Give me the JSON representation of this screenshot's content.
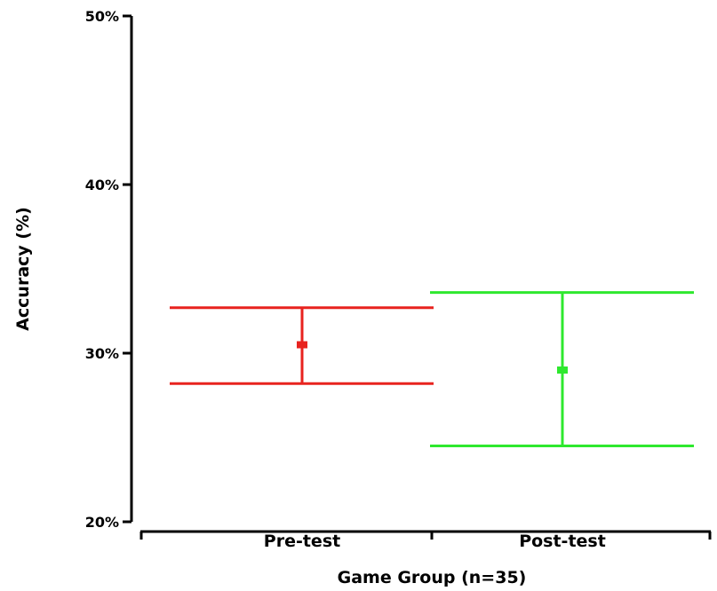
{
  "chart_data": {
    "type": "errorbar",
    "xlabel": "Game Group (n=35)",
    "ylabel": "Accuracy (%)",
    "ylim": [
      20,
      50
    ],
    "yticks": [
      20,
      30,
      40,
      50
    ],
    "ytick_labels": [
      "20%",
      "30%",
      "40%",
      "50%"
    ],
    "categories": [
      "Pre-test",
      "Post-test"
    ],
    "series": [
      {
        "category": "Pre-test",
        "mean": 30.5,
        "upper": 32.7,
        "lower": 28.2,
        "color": "#e8231f"
      },
      {
        "category": "Post-test",
        "mean": 29.0,
        "upper": 33.6,
        "lower": 24.5,
        "color": "#2ee82e"
      }
    ],
    "grid": false,
    "legend": "none"
  }
}
